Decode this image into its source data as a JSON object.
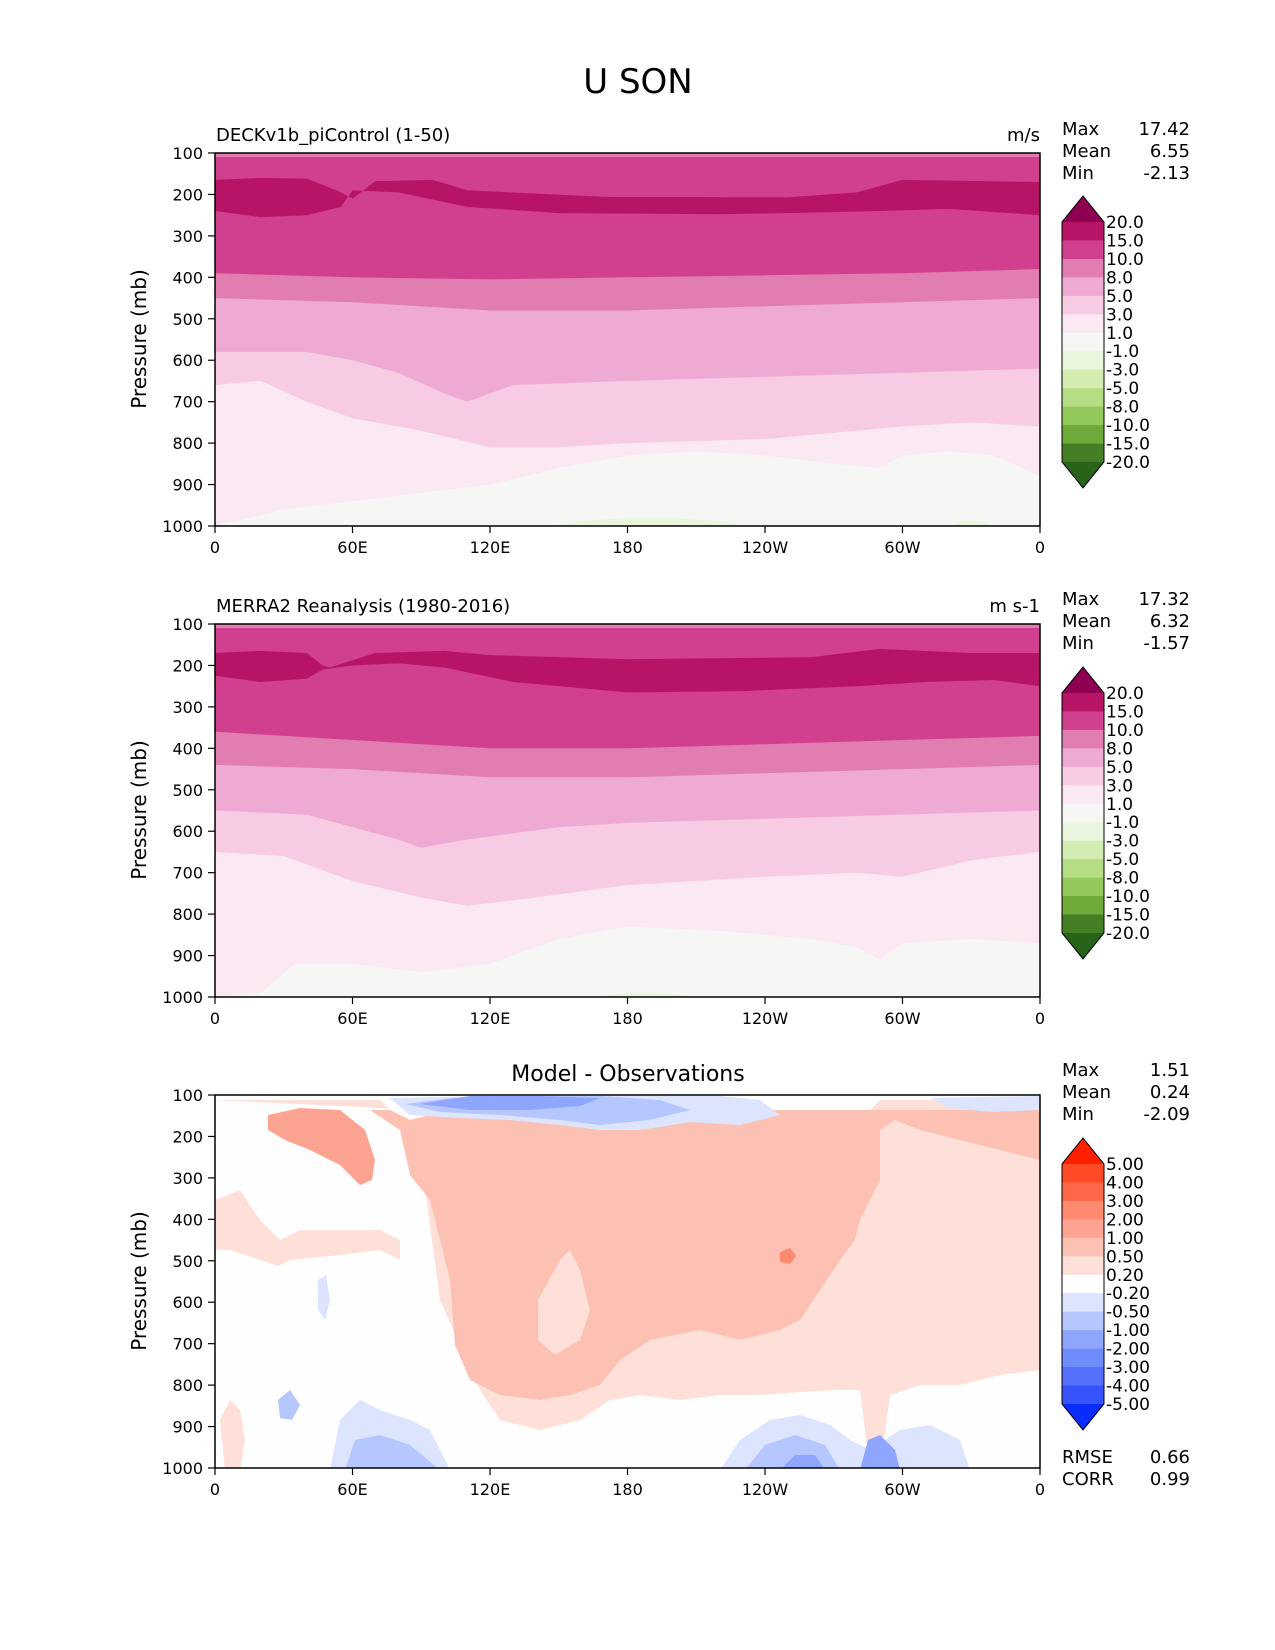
{
  "figure": {
    "title": "U SON"
  },
  "colors": {
    "model_obs_levels": [
      "#8e0152",
      "#b81466",
      "#d0408e",
      "#e17db1",
      "#eeaad2",
      "#f7cbe4",
      "#fae8f2",
      "#f6f6f4",
      "#e9f5dc",
      "#d2ecb1",
      "#b5dd84",
      "#93c85c",
      "#6eaa3a",
      "#457f25",
      "#276419"
    ],
    "diff_levels": [
      "#ff2000",
      "#ff4a25",
      "#ff6748",
      "#ff8a6f",
      "#fca392",
      "#fcc1b3",
      "#fee0d8",
      "#fefefe",
      "#dce4fe",
      "#b6c6fe",
      "#8ea6fe",
      "#6e8cfc",
      "#5470fc",
      "#3753fe",
      "#0a2dfe"
    ]
  },
  "chart_data": [
    {
      "type": "heatmap",
      "panel": "model",
      "title": "DECKv1b_piControl (1-50)",
      "units": "m/s",
      "ylabel": "Pressure (mb)",
      "xlabel": "",
      "x_ticks": [
        "0",
        "60E",
        "120E",
        "180",
        "120W",
        "60W",
        "0"
      ],
      "y_ticks": [
        "100",
        "200",
        "300",
        "400",
        "500",
        "600",
        "700",
        "800",
        "900",
        "1000"
      ],
      "ylim": [
        1000,
        100
      ],
      "xlim": [
        0,
        360
      ],
      "stats": {
        "max_label": "Max",
        "max": "17.42",
        "mean_label": "Mean",
        "mean": "6.55",
        "min_label": "Min",
        "min": "-2.13"
      },
      "colorbar_labels": [
        "20.0",
        "15.0",
        "10.0",
        "8.0",
        "5.0",
        "3.0",
        "1.0",
        "-1.0",
        "-3.0",
        "-5.0",
        "-8.0",
        "-10.0",
        "-15.0",
        "-20.0"
      ],
      "contours": [
        {
          "level": "15.0 to 20.0",
          "top": [
            [
              0,
              165
            ],
            [
              20,
              160
            ],
            [
              40,
              162
            ],
            [
              53,
              190
            ],
            [
              60,
              210
            ],
            [
              70,
              168
            ],
            [
              95,
              165
            ],
            [
              110,
              190
            ],
            [
              170,
              206
            ],
            [
              250,
              207
            ],
            [
              280,
              195
            ],
            [
              300,
              165
            ],
            [
              360,
              170
            ]
          ],
          "bottom": [
            [
              0,
              240
            ],
            [
              20,
              255
            ],
            [
              40,
              250
            ],
            [
              55,
              230
            ],
            [
              60,
              190
            ],
            [
              80,
              195
            ],
            [
              110,
              230
            ],
            [
              150,
              245
            ],
            [
              220,
              248
            ],
            [
              250,
              245
            ],
            [
              290,
              240
            ],
            [
              320,
              235
            ],
            [
              360,
              250
            ]
          ]
        },
        {
          "level": "10.0 to 15.0 bottom",
          "values": [
            [
              0,
              390
            ],
            [
              60,
              400
            ],
            [
              120,
              405
            ],
            [
              180,
              400
            ],
            [
              240,
              395
            ],
            [
              300,
              390
            ],
            [
              360,
              380
            ]
          ]
        },
        {
          "level": "8.0 to 10.0 bottom",
          "values": [
            [
              0,
              450
            ],
            [
              60,
              460
            ],
            [
              120,
              480
            ],
            [
              180,
              480
            ],
            [
              240,
              470
            ],
            [
              300,
              460
            ],
            [
              360,
              450
            ]
          ]
        },
        {
          "level": "5.0 to 8.0 bottom",
          "values": [
            [
              0,
              580
            ],
            [
              40,
              580
            ],
            [
              60,
              600
            ],
            [
              80,
              630
            ],
            [
              100,
              680
            ],
            [
              110,
              700
            ],
            [
              130,
              660
            ],
            [
              180,
              650
            ],
            [
              240,
              640
            ],
            [
              300,
              630
            ],
            [
              360,
              620
            ]
          ]
        },
        {
          "level": "3.0 to 5.0 bottom",
          "values": [
            [
              0,
              660
            ],
            [
              20,
              650
            ],
            [
              40,
              700
            ],
            [
              60,
              740
            ],
            [
              90,
              770
            ],
            [
              120,
              810
            ],
            [
              150,
              810
            ],
            [
              180,
              800
            ],
            [
              240,
              790
            ],
            [
              280,
              770
            ],
            [
              300,
              760
            ],
            [
              330,
              750
            ],
            [
              360,
              760
            ]
          ]
        },
        {
          "level": "1.0 to 3.0 bottom",
          "values": [
            [
              0,
              1000
            ],
            [
              30,
              960
            ],
            [
              60,
              940
            ],
            [
              90,
              920
            ],
            [
              120,
              900
            ],
            [
              150,
              860
            ],
            [
              180,
              830
            ],
            [
              210,
              820
            ],
            [
              240,
              830
            ],
            [
              270,
              850
            ],
            [
              290,
              860
            ],
            [
              300,
              830
            ],
            [
              320,
              820
            ],
            [
              340,
              830
            ],
            [
              360,
              880
            ]
          ]
        }
      ]
    },
    {
      "type": "heatmap",
      "panel": "obs",
      "title": "MERRA2 Reanalysis (1980-2016)",
      "units": "m s-1",
      "ylabel": "Pressure (mb)",
      "xlabel": "",
      "x_ticks": [
        "0",
        "60E",
        "120E",
        "180",
        "120W",
        "60W",
        "0"
      ],
      "y_ticks": [
        "100",
        "200",
        "300",
        "400",
        "500",
        "600",
        "700",
        "800",
        "900",
        "1000"
      ],
      "ylim": [
        1000,
        100
      ],
      "xlim": [
        0,
        360
      ],
      "stats": {
        "max_label": "Max",
        "max": "17.32",
        "mean_label": "Mean",
        "mean": "6.32",
        "min_label": "Min",
        "min": "-1.57"
      },
      "colorbar_labels": [
        "20.0",
        "15.0",
        "10.0",
        "8.0",
        "5.0",
        "3.0",
        "1.0",
        "-1.0",
        "-3.0",
        "-5.0",
        "-8.0",
        "-10.0",
        "-15.0",
        "-20.0"
      ],
      "contours": [
        {
          "level": "15.0 to 20.0",
          "top": [
            [
              0,
              170
            ],
            [
              20,
              165
            ],
            [
              40,
              170
            ],
            [
              47,
              200
            ],
            [
              50,
              205
            ],
            [
              70,
              170
            ],
            [
              100,
              165
            ],
            [
              120,
              175
            ],
            [
              180,
              185
            ],
            [
              260,
              180
            ],
            [
              290,
              160
            ],
            [
              330,
              170
            ],
            [
              360,
              170
            ]
          ],
          "bottom": [
            [
              0,
              225
            ],
            [
              20,
              240
            ],
            [
              40,
              232
            ],
            [
              47,
              210
            ],
            [
              60,
              200
            ],
            [
              80,
              195
            ],
            [
              100,
              205
            ],
            [
              130,
              240
            ],
            [
              180,
              265
            ],
            [
              230,
              262
            ],
            [
              280,
              250
            ],
            [
              310,
              240
            ],
            [
              340,
              235
            ],
            [
              360,
              250
            ]
          ]
        },
        {
          "level": "10.0 to 15.0 bottom",
          "values": [
            [
              0,
              360
            ],
            [
              60,
              380
            ],
            [
              120,
              400
            ],
            [
              180,
              400
            ],
            [
              240,
              390
            ],
            [
              300,
              380
            ],
            [
              360,
              370
            ]
          ]
        },
        {
          "level": "8.0 to 10.0 bottom",
          "values": [
            [
              0,
              440
            ],
            [
              60,
              450
            ],
            [
              120,
              470
            ],
            [
              180,
              470
            ],
            [
              240,
              460
            ],
            [
              300,
              450
            ],
            [
              360,
              440
            ]
          ]
        },
        {
          "level": "5.0 to 8.0 bottom",
          "values": [
            [
              0,
              550
            ],
            [
              40,
              560
            ],
            [
              60,
              590
            ],
            [
              80,
              620
            ],
            [
              90,
              640
            ],
            [
              110,
              620
            ],
            [
              150,
              590
            ],
            [
              180,
              580
            ],
            [
              240,
              570
            ],
            [
              300,
              560
            ],
            [
              360,
              550
            ]
          ]
        },
        {
          "level": "3.0 to 5.0 bottom",
          "values": [
            [
              0,
              650
            ],
            [
              30,
              660
            ],
            [
              60,
              720
            ],
            [
              90,
              760
            ],
            [
              110,
              780
            ],
            [
              140,
              760
            ],
            [
              180,
              730
            ],
            [
              240,
              710
            ],
            [
              280,
              700
            ],
            [
              300,
              710
            ],
            [
              330,
              670
            ],
            [
              360,
              650
            ]
          ]
        },
        {
          "level": "1.0 to 3.0 bottom",
          "values": [
            [
              0,
              1000
            ],
            [
              20,
              990
            ],
            [
              35,
              920
            ],
            [
              60,
              920
            ],
            [
              90,
              940
            ],
            [
              120,
              920
            ],
            [
              150,
              860
            ],
            [
              180,
              830
            ],
            [
              220,
              840
            ],
            [
              260,
              860
            ],
            [
              280,
              880
            ],
            [
              290,
              910
            ],
            [
              300,
              870
            ],
            [
              330,
              860
            ],
            [
              360,
              870
            ]
          ]
        }
      ]
    },
    {
      "type": "heatmap",
      "panel": "diff",
      "title": "Model - Observations",
      "units": "",
      "ylabel": "Pressure (mb)",
      "xlabel": "",
      "x_ticks": [
        "0",
        "60E",
        "120E",
        "180",
        "120W",
        "60W",
        "0"
      ],
      "y_ticks": [
        "100",
        "200",
        "300",
        "400",
        "500",
        "600",
        "700",
        "800",
        "900",
        "1000"
      ],
      "ylim": [
        1000,
        100
      ],
      "xlim": [
        0,
        360
      ],
      "stats": {
        "max_label": "Max",
        "max": "1.51",
        "mean_label": "Mean",
        "mean": "0.24",
        "min_label": "Min",
        "min": "-2.09"
      },
      "error_stats": {
        "rmse_label": "RMSE",
        "rmse": "0.66",
        "corr_label": "CORR",
        "corr": "0.99"
      },
      "colorbar_labels": [
        "5.00",
        "4.00",
        "3.00",
        "2.00",
        "1.00",
        "0.50",
        "0.20",
        "-0.20",
        "-0.50",
        "-1.00",
        "-2.00",
        "-3.00",
        "-4.00",
        "-5.00"
      ]
    }
  ]
}
